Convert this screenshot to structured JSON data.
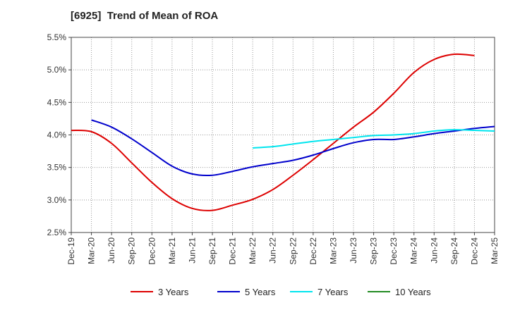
{
  "chart_data": {
    "type": "line",
    "title": "[6925]  Trend of Mean of ROA",
    "xlabel": "",
    "ylabel": "",
    "x_ticks": [
      "Dec-19",
      "Mar-20",
      "Jun-20",
      "Sep-20",
      "Dec-20",
      "Mar-21",
      "Jun-21",
      "Sep-21",
      "Dec-21",
      "Mar-22",
      "Jun-22",
      "Sep-22",
      "Dec-22",
      "Mar-23",
      "Jun-23",
      "Sep-23",
      "Dec-23",
      "Mar-24",
      "Jun-24",
      "Sep-24",
      "Dec-24",
      "Mar-25"
    ],
    "y_ticks": [
      "2.5%",
      "3.0%",
      "3.5%",
      "4.0%",
      "4.5%",
      "5.0%",
      "5.5%"
    ],
    "ylim": [
      2.5,
      5.5
    ],
    "grid": true,
    "legend_position": "bottom",
    "series": [
      {
        "name": "3 Years",
        "color": "#dd0000",
        "start_index": 0,
        "values": [
          4.07,
          4.05,
          3.87,
          3.57,
          3.27,
          3.02,
          2.87,
          2.84,
          2.92,
          3.01,
          3.16,
          3.38,
          3.62,
          3.87,
          4.12,
          4.35,
          4.64,
          4.96,
          5.16,
          5.24,
          5.22
        ]
      },
      {
        "name": "5 Years",
        "color": "#0000cc",
        "start_index": 1,
        "values": [
          4.23,
          4.12,
          3.94,
          3.73,
          3.52,
          3.4,
          3.38,
          3.44,
          3.51,
          3.56,
          3.61,
          3.69,
          3.79,
          3.88,
          3.93,
          3.93,
          3.97,
          4.02,
          4.06,
          4.1,
          4.13
        ]
      },
      {
        "name": "7 Years",
        "color": "#00e5ee",
        "start_index": 9,
        "values": [
          3.8,
          3.82,
          3.86,
          3.9,
          3.93,
          3.96,
          3.99,
          4.0,
          4.02,
          4.06,
          4.08,
          4.07,
          4.06
        ]
      },
      {
        "name": "10 Years",
        "color": "#228b22",
        "start_index": 0,
        "values": []
      }
    ]
  }
}
